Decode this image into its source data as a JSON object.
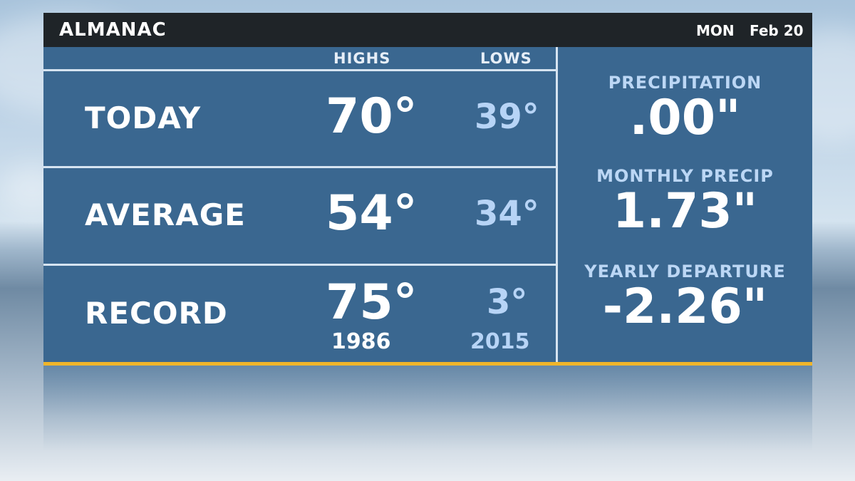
{
  "header": {
    "title": "ALMANAC",
    "day": "MON",
    "date": "Feb 20"
  },
  "columns": {
    "highs": "HIGHS",
    "lows": "LOWS"
  },
  "rows": [
    {
      "label": "TODAY",
      "high": "70°",
      "low": "39°"
    },
    {
      "label": "AVERAGE",
      "high": "54°",
      "low": "34°"
    },
    {
      "label": "RECORD",
      "high": "75°",
      "low": "3°",
      "high_year": "1986",
      "low_year": "2015"
    }
  ],
  "precip": [
    {
      "label": "PRECIPITATION",
      "value": ".00\""
    },
    {
      "label": "MONTHLY PRECIP",
      "value": "1.73\""
    },
    {
      "label": "YEARLY DEPARTURE",
      "value": "-2.26\""
    }
  ],
  "colors": {
    "panel": "#3a6790",
    "header": "#1f2428",
    "accent": "#f0b52a",
    "low_text": "#b7d4f6",
    "label_text": "#bcd7f5"
  }
}
